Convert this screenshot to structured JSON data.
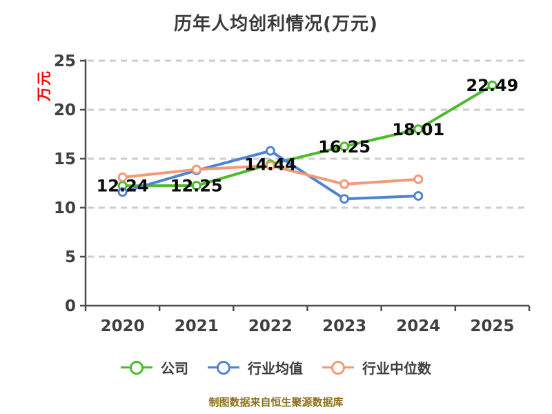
{
  "title": "历年人均创利情况(万元)",
  "y_axis_label": "万元",
  "footer_note": "制图数据来自恒生聚源数据库",
  "colors": {
    "background": "#ffffff",
    "title_text": "#3a3a3a",
    "axis_line": "#4d4d4d",
    "tick_label": "#404040",
    "gridline": "#cdcdcd",
    "data_label": "#0a0a0a",
    "y_axis_label": "#ff0000",
    "footer": "#8e6f1c",
    "company": "#4cbb2c",
    "industry_avg": "#4e83d3",
    "industry_median": "#f29a76"
  },
  "chart_data": {
    "type": "line",
    "title": "历年人均创利情况(万元)",
    "ylabel": "万元",
    "categories": [
      "2020",
      "2021",
      "2022",
      "2023",
      "2024",
      "2025"
    ],
    "series": [
      {
        "name": "公司",
        "key": "company",
        "color": "#4cbb2c",
        "values": [
          12.24,
          12.25,
          14.44,
          16.25,
          18.01,
          22.49
        ],
        "show_labels": true,
        "labels": [
          "12.24",
          "12.25",
          "14.44",
          "16.25",
          "18.01",
          "22.49"
        ]
      },
      {
        "name": "行业均值",
        "key": "industry-avg",
        "color": "#4e83d3",
        "values": [
          11.6,
          13.8,
          15.8,
          10.9,
          11.2,
          null
        ],
        "show_labels": false,
        "labels": []
      },
      {
        "name": "行业中位数",
        "key": "industry-median",
        "color": "#f29a76",
        "values": [
          13.1,
          13.9,
          14.3,
          12.4,
          12.9,
          null
        ],
        "show_labels": false,
        "labels": []
      }
    ],
    "ylim": [
      0,
      25
    ],
    "y_ticks": [
      0,
      5,
      10,
      15,
      20,
      25
    ],
    "grid": "horizontal-dashed",
    "legend_position": "bottom"
  }
}
